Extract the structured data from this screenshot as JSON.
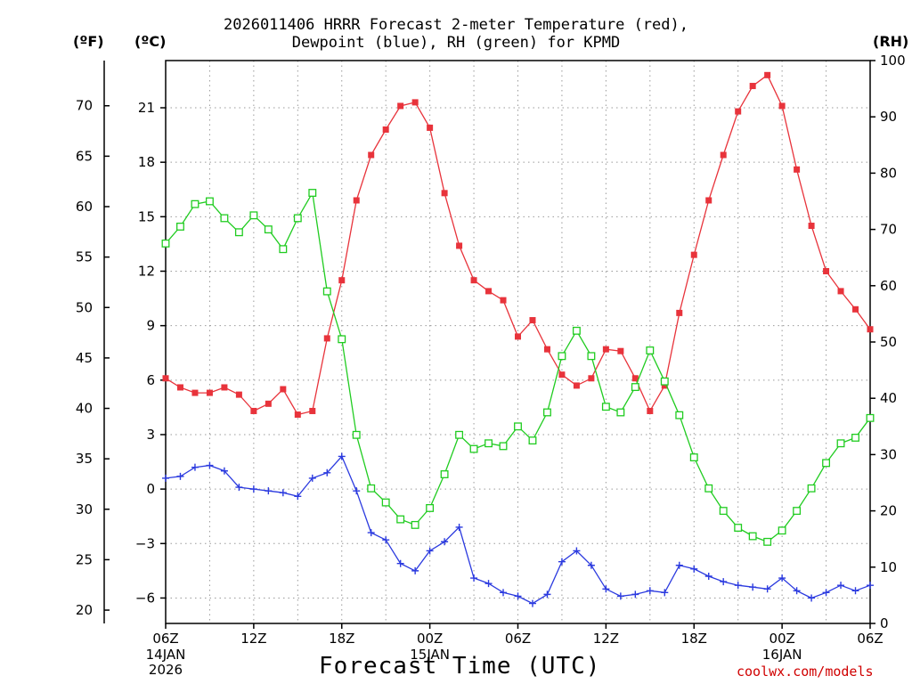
{
  "chart_data": {
    "type": "line",
    "title": "2026011406 HRRR Forecast 2-meter Temperature (red),",
    "subtitle": "Dewpoint (blue), RH (green) for KPMD",
    "units": {
      "fahrenheit": "(ºF)",
      "celsius": "(ºC)",
      "rh": "(RH)"
    },
    "xlabel": "Forecast Time (UTC)",
    "credit": "coolwx.com/models",
    "grid": true,
    "x_hours": [
      0,
      1,
      2,
      3,
      4,
      5,
      6,
      7,
      8,
      9,
      10,
      11,
      12,
      13,
      14,
      15,
      16,
      17,
      18,
      19,
      20,
      21,
      22,
      23,
      24,
      25,
      26,
      27,
      28,
      29,
      30,
      31,
      32,
      33,
      34,
      35,
      36,
      37,
      38,
      39,
      40,
      41,
      42,
      43,
      44,
      45,
      46,
      47,
      48
    ],
    "x_ticks": [
      {
        "hour": 0,
        "label": "06Z",
        "date": "14JAN",
        "year": "2026"
      },
      {
        "hour": 6,
        "label": "12Z"
      },
      {
        "hour": 12,
        "label": "18Z"
      },
      {
        "hour": 18,
        "label": "00Z",
        "date": "15JAN"
      },
      {
        "hour": 24,
        "label": "06Z"
      },
      {
        "hour": 30,
        "label": "12Z"
      },
      {
        "hour": 36,
        "label": "18Z"
      },
      {
        "hour": 42,
        "label": "00Z",
        "date": "16JAN"
      },
      {
        "hour": 48,
        "label": "06Z"
      }
    ],
    "y_celsius": {
      "range": [
        -7.4,
        23.6
      ],
      "ticks": [
        -6,
        -3,
        0,
        3,
        6,
        9,
        12,
        15,
        18,
        21
      ]
    },
    "y_fahrenheit": {
      "ticks": [
        20,
        25,
        30,
        35,
        40,
        45,
        50,
        55,
        60,
        65,
        70
      ]
    },
    "y_rh": {
      "range": [
        0,
        100
      ],
      "ticks": [
        0,
        10,
        20,
        30,
        40,
        50,
        60,
        70,
        80,
        90,
        100
      ]
    },
    "series": [
      {
        "name": "Temperature",
        "color": "#e8333b",
        "marker": "filled-square",
        "axis": "celsius",
        "values": [
          6.1,
          5.6,
          5.3,
          5.3,
          5.6,
          5.2,
          4.3,
          4.7,
          5.5,
          4.1,
          4.3,
          8.3,
          11.5,
          15.9,
          18.4,
          19.8,
          21.1,
          21.3,
          19.9,
          16.3,
          13.4,
          11.5,
          10.9,
          10.4,
          8.4,
          9.3,
          7.7,
          6.3,
          5.7,
          6.1,
          7.7,
          7.6,
          6.1,
          4.3,
          5.7,
          9.7,
          12.9,
          15.9,
          18.4,
          20.8,
          22.2,
          22.8,
          21.1,
          17.6,
          14.5,
          12.0,
          10.9,
          9.9,
          8.8
        ]
      },
      {
        "name": "Dewpoint",
        "color": "#2b3adf",
        "marker": "plus",
        "axis": "celsius",
        "values": [
          0.6,
          0.7,
          1.2,
          1.3,
          1.0,
          0.1,
          0.0,
          -0.1,
          -0.2,
          -0.4,
          0.6,
          0.9,
          1.8,
          -0.1,
          -2.4,
          -2.8,
          -4.1,
          -4.5,
          -3.4,
          -2.9,
          -2.1,
          -4.9,
          -5.2,
          -5.7,
          -5.9,
          -6.3,
          -5.8,
          -4.0,
          -3.4,
          -4.2,
          -5.5,
          -5.9,
          -5.8,
          -5.6,
          -5.7,
          -4.2,
          -4.4,
          -4.8,
          -5.1,
          -5.3,
          -5.4,
          -5.5,
          -4.9,
          -5.6,
          -6.0,
          -5.7,
          -5.3,
          -5.6,
          -5.3
        ]
      },
      {
        "name": "RH",
        "color": "#20cc20",
        "marker": "open-square",
        "axis": "rh",
        "values": [
          67.5,
          70.5,
          74.5,
          75.0,
          72.0,
          69.5,
          72.5,
          70.0,
          66.5,
          72.0,
          76.5,
          59.0,
          50.5,
          33.5,
          24.0,
          21.5,
          18.5,
          17.5,
          20.5,
          26.5,
          33.5,
          31.0,
          32.0,
          31.5,
          35.0,
          32.5,
          37.5,
          47.5,
          52.0,
          47.5,
          38.5,
          37.5,
          42.0,
          48.5,
          43.0,
          37.0,
          29.5,
          24.0,
          20.0,
          17.0,
          15.5,
          14.5,
          16.5,
          20.0,
          24.0,
          28.5,
          32.0,
          33.0,
          36.5
        ]
      }
    ]
  }
}
